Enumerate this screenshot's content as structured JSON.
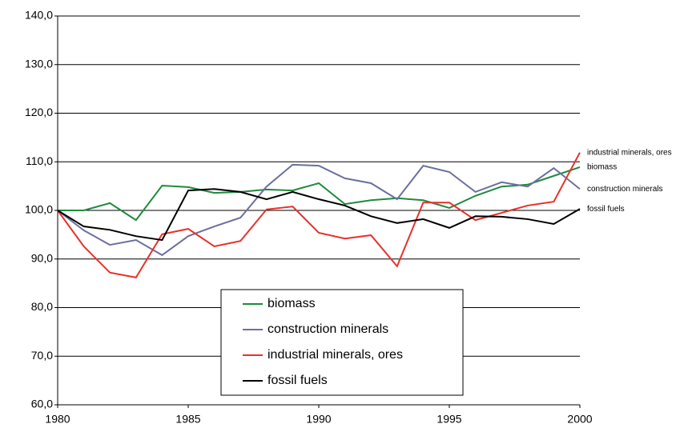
{
  "chart_data": {
    "type": "line",
    "x": [
      1980,
      1981,
      1982,
      1983,
      1984,
      1985,
      1986,
      1987,
      1988,
      1989,
      1990,
      1991,
      1992,
      1993,
      1994,
      1995,
      1996,
      1997,
      1998,
      1999,
      2000
    ],
    "series": [
      {
        "name": "biomass",
        "color": "#1e8a3c",
        "values": [
          100,
          100,
          101.5,
          98.0,
          105.1,
          104.8,
          103.6,
          103.8,
          104.3,
          104.1,
          105.6,
          101.3,
          102.1,
          102.5,
          102.1,
          100.5,
          103.0,
          104.9,
          105.3,
          107.1,
          108.9
        ]
      },
      {
        "name": "construction minerals",
        "color": "#6b6fa0",
        "values": [
          100,
          95.9,
          92.9,
          93.9,
          90.8,
          94.7,
          96.7,
          98.5,
          104.9,
          109.4,
          109.2,
          106.6,
          105.6,
          102.3,
          109.2,
          107.9,
          103.8,
          105.8,
          104.9,
          108.7,
          104.4
        ]
      },
      {
        "name": "industrial minerals, ores",
        "color": "#e8302a",
        "values": [
          100,
          92.6,
          87.2,
          86.2,
          95.1,
          96.2,
          92.6,
          93.7,
          100.2,
          100.8,
          95.4,
          94.2,
          94.9,
          88.5,
          101.6,
          101.6,
          98.0,
          99.5,
          101.0,
          101.8,
          111.9
        ]
      },
      {
        "name": "fossil fuels",
        "color": "#000000",
        "values": [
          100,
          96.7,
          96.0,
          94.7,
          93.9,
          104.1,
          104.4,
          103.8,
          102.3,
          103.8,
          102.3,
          101.0,
          98.8,
          97.4,
          98.2,
          96.4,
          98.8,
          98.7,
          98.2,
          97.2,
          100.3
        ]
      }
    ],
    "xlim": [
      1980,
      2000
    ],
    "xticks": [
      1980,
      1985,
      1990,
      1995,
      2000
    ],
    "ylim": [
      60,
      140
    ],
    "yticks": [
      {
        "value": 60,
        "label": "60,0"
      },
      {
        "value": 70,
        "label": "70,0"
      },
      {
        "value": 80,
        "label": "80,0"
      },
      {
        "value": 90,
        "label": "90,0"
      },
      {
        "value": 100,
        "label": "100,0"
      },
      {
        "value": 110,
        "label": "110,0"
      },
      {
        "value": 120,
        "label": "120,0"
      },
      {
        "value": 130,
        "label": "130,0"
      },
      {
        "value": 140,
        "label": "140,0"
      }
    ],
    "grid": true,
    "legend": "bottom"
  }
}
